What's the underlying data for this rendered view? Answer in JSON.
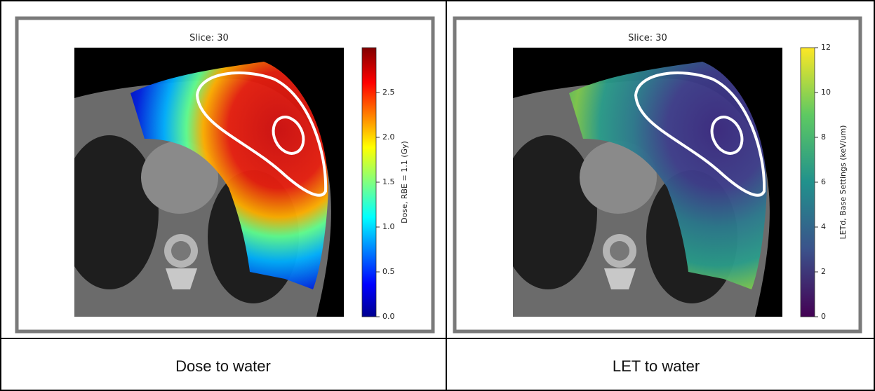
{
  "panels": [
    {
      "title": "Slice: 30",
      "caption": "Dose to water",
      "colorbar": {
        "label": "Dose, RBE = 1.1 (Gy)",
        "colormap": "jet",
        "range": [
          0,
          3
        ],
        "ticks": [
          {
            "value": 0,
            "label": "0.0"
          },
          {
            "value": 0.5,
            "label": "0.5"
          },
          {
            "value": 1,
            "label": "1.0"
          },
          {
            "value": 1.5,
            "label": "1.5"
          },
          {
            "value": 2,
            "label": "2.0"
          },
          {
            "value": 2.5,
            "label": "2.5"
          }
        ]
      }
    },
    {
      "title": "Slice: 30",
      "caption": "LET to water",
      "colorbar": {
        "label": "LETd, Base Settings (keV/um)",
        "colormap": "viridis",
        "range": [
          0,
          12
        ],
        "ticks": [
          0,
          2,
          4,
          6,
          8,
          10,
          12
        ]
      }
    }
  ]
}
